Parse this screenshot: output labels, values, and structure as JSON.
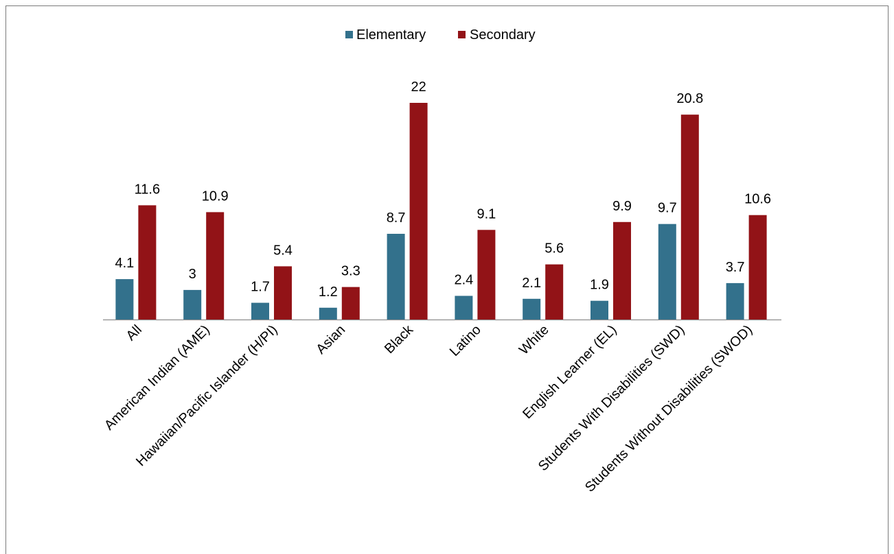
{
  "chart_data": {
    "type": "bar",
    "categories": [
      "All",
      "American Indian (AME)",
      "Hawaiian/Pacific Islander (H/PI)",
      "Asian",
      "Black",
      "Latino",
      "White",
      "English Learner (EL)",
      "Students With Disabilities (SWD)",
      "Students Without Disabilities (SWOD)"
    ],
    "series": [
      {
        "name": "Elementary",
        "color": "#33718C",
        "values": [
          4.1,
          3,
          1.7,
          1.2,
          8.7,
          2.4,
          2.1,
          1.9,
          9.7,
          3.7
        ]
      },
      {
        "name": "Secondary",
        "color": "#921317",
        "values": [
          11.6,
          10.9,
          5.4,
          3.3,
          22,
          9.1,
          5.6,
          9.9,
          20.8,
          10.6
        ]
      }
    ],
    "legend_position": "top-center",
    "grid": false,
    "ylim": [
      0,
      22
    ]
  }
}
